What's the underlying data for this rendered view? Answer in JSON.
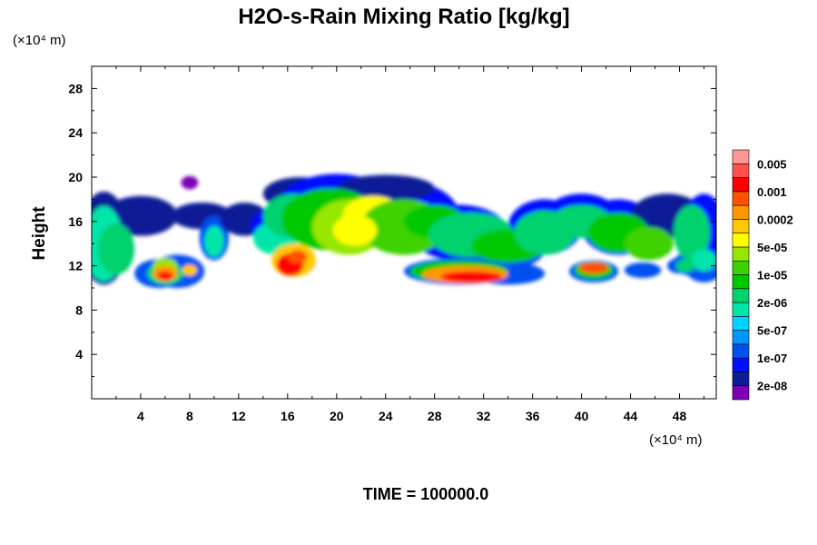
{
  "chart_data": {
    "type": "heatmap",
    "title": "H2O-s-Rain Mixing Ratio [kg/kg]",
    "ylabel": "Height",
    "xlabel": "",
    "y_unit": "(×10⁴ m)",
    "x_unit": "(×10⁴ m)",
    "xlim": [
      0,
      51
    ],
    "ylim": [
      0,
      30
    ],
    "x_ticks": [
      4,
      8,
      12,
      16,
      20,
      24,
      28,
      32,
      36,
      40,
      44,
      48
    ],
    "y_ticks": [
      4,
      8,
      12,
      16,
      20,
      24,
      28
    ],
    "x_tick_labels": [
      "4",
      "8",
      "12",
      "16",
      "20",
      "24",
      "28",
      "32",
      "36",
      "40",
      "44",
      "48"
    ],
    "y_tick_labels": [
      "4",
      "8",
      "12",
      "16",
      "20",
      "24",
      "28"
    ],
    "colorbar": {
      "colors": [
        "#7a00b4",
        "#0a1e96",
        "#0010ff",
        "#0050f0",
        "#0096ff",
        "#00d2ff",
        "#00e6aa",
        "#00d26e",
        "#00c800",
        "#3cd200",
        "#96e600",
        "#ffff00",
        "#ffc800",
        "#ff9600",
        "#ff5000",
        "#ff0000",
        "#ff5050",
        "#ff9696"
      ],
      "labels": [
        "2e-08",
        "1e-07",
        "5e-07",
        "2e-06",
        "1e-05",
        "5e-05",
        "0.0002",
        "0.001",
        "0.005"
      ]
    },
    "grid": false,
    "legend_position": "right"
  },
  "footer": {
    "time_label": "TIME = 100000.0"
  }
}
